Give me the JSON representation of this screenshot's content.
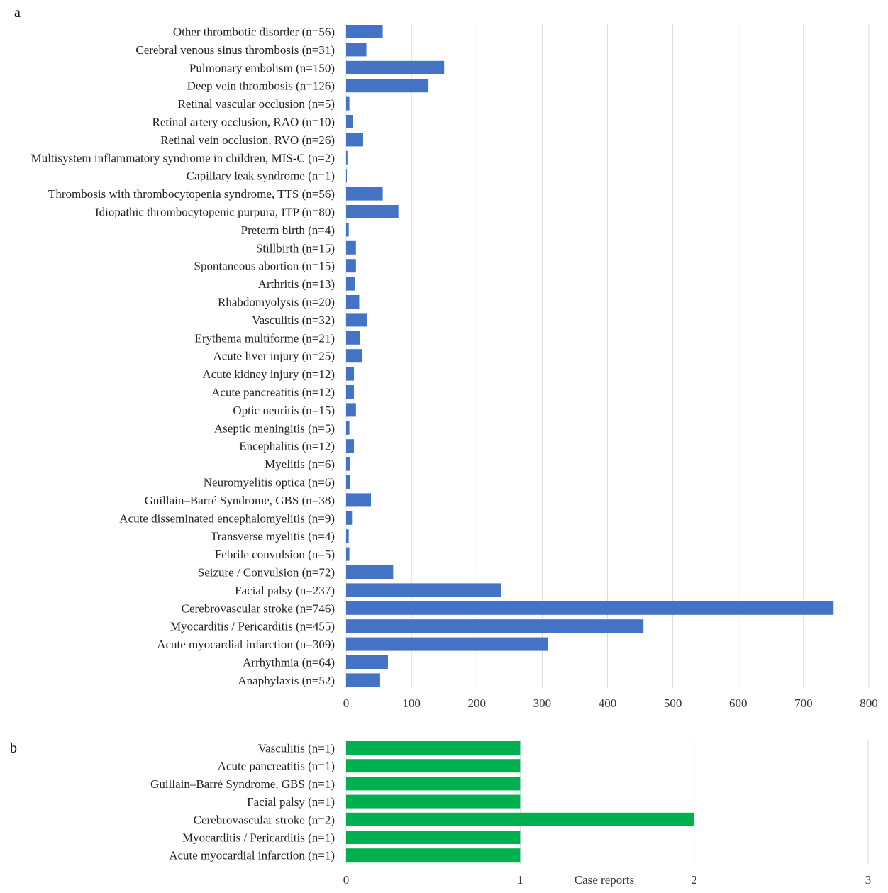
{
  "chart_data": [
    {
      "panel_label": "a",
      "type": "bar",
      "orientation": "horizontal",
      "color": "#4472c4",
      "xlim": [
        0,
        800
      ],
      "xticks": [
        0,
        100,
        200,
        300,
        400,
        500,
        600,
        700,
        800
      ],
      "xlabel": "",
      "grid": "vertical",
      "categories": [
        "Other thrombotic disorder (n=56)",
        "Cerebral venous sinus thrombosis (n=31)",
        "Pulmonary embolism (n=150)",
        "Deep vein thrombosis (n=126)",
        "Retinal vascular occlusion (n=5)",
        "Retinal artery occlusion, RAO (n=10)",
        "Retinal vein occlusion, RVO (n=26)",
        "Multisystem inflammatory syndrome in children, MIS-C (n=2)",
        "Capillary leak syndrome (n=1)",
        "Thrombosis with thrombocytopenia syndrome, TTS (n=56)",
        "Idiopathic thrombocytopenic purpura, ITP (n=80)",
        "Preterm birth (n=4)",
        "Stillbirth (n=15)",
        "Spontaneous abortion (n=15)",
        "Arthritis (n=13)",
        "Rhabdomyolysis (n=20)",
        "Vasculitis (n=32)",
        "Erythema multiforme (n=21)",
        "Acute liver injury (n=25)",
        "Acute kidney injury (n=12)",
        "Acute pancreatitis (n=12)",
        "Optic neuritis (n=15)",
        "Aseptic meningitis (n=5)",
        "Encephalitis (n=12)",
        "Myelitis (n=6)",
        "Neuromyelitis optica (n=6)",
        "Guillain–Barré Syndrome, GBS (n=38)",
        "Acute disseminated encephalomyelitis (n=9)",
        "Transverse myelitis (n=4)",
        "Febrile convulsion (n=5)",
        "Seizure / Convulsion (n=72)",
        "Facial palsy (n=237)",
        "Cerebrovascular stroke (n=746)",
        "Myocarditis / Pericarditis (n=455)",
        "Acute myocardial infarction (n=309)",
        "Arrhythmia (n=64)",
        "Anaphylaxis (n=52)"
      ],
      "values": [
        56,
        31,
        150,
        126,
        5,
        10,
        26,
        2,
        1,
        56,
        80,
        4,
        15,
        15,
        13,
        20,
        32,
        21,
        25,
        12,
        12,
        15,
        5,
        12,
        6,
        6,
        38,
        9,
        4,
        5,
        72,
        237,
        746,
        455,
        309,
        64,
        52
      ]
    },
    {
      "panel_label": "b",
      "type": "bar",
      "orientation": "horizontal",
      "color": "#00b050",
      "xlim": [
        0,
        3
      ],
      "xticks": [
        0,
        1,
        2,
        3
      ],
      "xlabel": "Case reports",
      "grid": "vertical",
      "categories": [
        "Vasculitis (n=1)",
        "Acute pancreatitis (n=1)",
        "Guillain–Barré Syndrome, GBS (n=1)",
        "Facial palsy (n=1)",
        "Cerebrovascular stroke (n=2)",
        "Myocarditis / Pericarditis (n=1)",
        "Acute myocardial infarction (n=1)"
      ],
      "values": [
        1,
        1,
        1,
        1,
        2,
        1,
        1
      ]
    }
  ]
}
